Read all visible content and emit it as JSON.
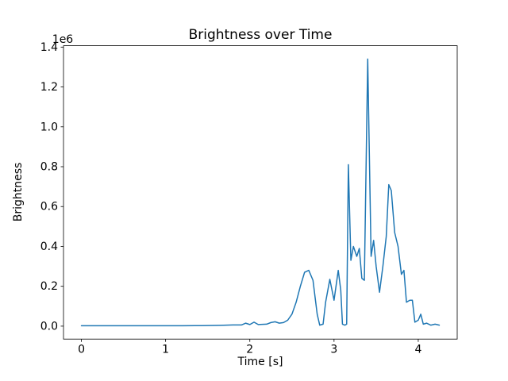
{
  "chart_data": {
    "type": "line",
    "title": "Brightness over Time",
    "xlabel": "Time [s]",
    "ylabel": "Brightness",
    "y_offset_label": "1e6",
    "grid": false,
    "legend": null,
    "line_color": "#1f77b4",
    "xlim": [
      -0.2125,
      4.4625
    ],
    "ylim": [
      -64900,
      1406900
    ],
    "xticks": [
      0,
      1,
      2,
      3,
      4
    ],
    "xtick_labels": [
      "0",
      "1",
      "2",
      "3",
      "4"
    ],
    "yticks": [
      0,
      200000,
      400000,
      600000,
      800000,
      1000000,
      1200000,
      1400000
    ],
    "ytick_labels": [
      "0.0",
      "0.2",
      "0.4",
      "0.6",
      "0.8",
      "1.0",
      "1.2",
      "1.4"
    ],
    "series": [
      {
        "name": "brightness",
        "color": "#1f77b4",
        "x": [
          0.0,
          0.15,
          0.3,
          0.45,
          0.6,
          0.75,
          0.9,
          1.05,
          1.2,
          1.35,
          1.5,
          1.65,
          1.8,
          1.9,
          1.95,
          2.0,
          2.05,
          2.1,
          2.2,
          2.25,
          2.3,
          2.35,
          2.4,
          2.45,
          2.5,
          2.55,
          2.6,
          2.65,
          2.7,
          2.75,
          2.8,
          2.83,
          2.87,
          2.9,
          2.95,
          3.0,
          3.05,
          3.08,
          3.1,
          3.13,
          3.15,
          3.17,
          3.2,
          3.23,
          3.27,
          3.3,
          3.33,
          3.36,
          3.4,
          3.44,
          3.47,
          3.5,
          3.54,
          3.58,
          3.62,
          3.65,
          3.68,
          3.72,
          3.76,
          3.8,
          3.83,
          3.86,
          3.9,
          3.93,
          3.96,
          4.0,
          4.03,
          4.06,
          4.1,
          4.15,
          4.2,
          4.25
        ],
        "y": [
          2000,
          2000,
          2000,
          2000,
          2000,
          2000,
          2000,
          2000,
          2000,
          2500,
          3000,
          4000,
          6000,
          6000,
          15000,
          8000,
          20000,
          8000,
          10000,
          18000,
          22000,
          15000,
          18000,
          30000,
          60000,
          120000,
          200000,
          270000,
          280000,
          230000,
          60000,
          5000,
          10000,
          120000,
          235000,
          130000,
          280000,
          180000,
          10000,
          5000,
          10000,
          810000,
          330000,
          400000,
          350000,
          390000,
          240000,
          230000,
          1340000,
          350000,
          430000,
          300000,
          170000,
          300000,
          450000,
          710000,
          680000,
          470000,
          400000,
          260000,
          280000,
          120000,
          130000,
          130000,
          20000,
          30000,
          60000,
          10000,
          15000,
          5000,
          10000,
          5000
        ]
      }
    ]
  }
}
